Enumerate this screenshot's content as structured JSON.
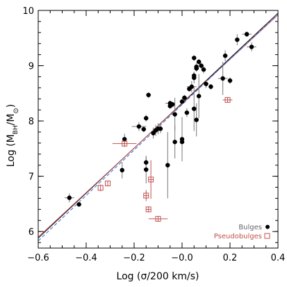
{
  "chart_data": {
    "type": "scatter",
    "xlabel": "Log (σ/200 km/s)",
    "ylabel_main": "Log (M",
    "ylabel_sub": "BH",
    "ylabel_mid": "/M",
    "ylabel_sun": "⊙",
    "ylabel_end": ")",
    "xlim": [
      -0.6,
      0.4
    ],
    "ylim": [
      5.7,
      10.0
    ],
    "x_ticks": [
      -0.6,
      -0.4,
      -0.2,
      0.0,
      0.2,
      0.4
    ],
    "x_tick_labels": [
      "−0.6",
      "−0.4",
      "−0.2",
      "−0.0",
      "0.2",
      "0.4"
    ],
    "y_ticks": [
      6,
      7,
      8,
      9,
      10
    ],
    "y_tick_labels": [
      "6",
      "7",
      "8",
      "9",
      "10"
    ],
    "legend_position": "bottom-right",
    "legend": [
      {
        "label": "Bulges",
        "marker": "filled-circle",
        "color": "#000000"
      },
      {
        "label": "Pseudobulges",
        "marker": "open-square",
        "color": "#c0504d"
      }
    ],
    "fit_lines": [
      {
        "name": "",
        "color": "#000000",
        "style": "solid",
        "x": [
          -0.6,
          0.4
        ],
        "y": [
          5.88,
          9.95
        ]
      },
      {
        "name": "",
        "color": "#c0504d",
        "style": "solid",
        "x": [
          -0.6,
          0.4
        ],
        "y": [
          5.9,
          9.92
        ]
      },
      {
        "name": "",
        "color": "#2e6fd8",
        "style": "dashed",
        "x": [
          -0.6,
          0.4
        ],
        "y": [
          5.83,
          9.94
        ]
      }
    ],
    "series": [
      {
        "name": "Bulges",
        "color": "#000000",
        "points": [
          {
            "x": -0.47,
            "y": 6.61,
            "xerr": 0.02,
            "yerr": 0.08
          },
          {
            "x": -0.43,
            "y": 6.49,
            "xerr": 0.01,
            "yerr": 0.03
          },
          {
            "x": -0.25,
            "y": 7.11,
            "xerr": 0.01,
            "yerr": 0.15
          },
          {
            "x": -0.24,
            "y": 7.67,
            "xerr": 0.0,
            "yerr": 0.1
          },
          {
            "x": -0.18,
            "y": 7.9,
            "xerr": 0.03,
            "yerr": 0.08
          },
          {
            "x": -0.16,
            "y": 7.85,
            "xerr": 0.01,
            "yerr": 0.05
          },
          {
            "x": -0.15,
            "y": 8.05,
            "xerr": 0.01,
            "yerr": 0.06
          },
          {
            "x": -0.14,
            "y": 8.47,
            "xerr": 0.01,
            "yerr": 0.05
          },
          {
            "x": -0.12,
            "y": 7.78,
            "xerr": 0.0,
            "yerr": 0.1
          },
          {
            "x": -0.11,
            "y": 7.83,
            "xerr": 0.0,
            "yerr": 0.1
          },
          {
            "x": -0.1,
            "y": 7.86,
            "xerr": 0.01,
            "yerr": 0.1
          },
          {
            "x": -0.09,
            "y": 7.86,
            "xerr": 0.01,
            "yerr": 0.08
          },
          {
            "x": -0.15,
            "y": 7.25,
            "xerr": 0.01,
            "yerr": 0.1
          },
          {
            "x": -0.15,
            "y": 7.12,
            "xerr": 0.01,
            "yerr": 0.25
          },
          {
            "x": -0.06,
            "y": 7.2,
            "xerr": 0.0,
            "yerr": 0.6
          },
          {
            "x": -0.05,
            "y": 8.32,
            "xerr": 0.02,
            "yerr": 0.05
          },
          {
            "x": -0.05,
            "y": 8.27,
            "xerr": 0.01,
            "yerr": 0.05
          },
          {
            "x": -0.04,
            "y": 8.3,
            "xerr": 0.01,
            "yerr": 0.05
          },
          {
            "x": -0.03,
            "y": 8.12,
            "xerr": 0.01,
            "yerr": 0.3
          },
          {
            "x": -0.03,
            "y": 7.62,
            "xerr": 0.0,
            "yerr": 0.3
          },
          {
            "x": 0.0,
            "y": 7.67,
            "xerr": 0.0,
            "yerr": 0.4
          },
          {
            "x": 0.0,
            "y": 7.62,
            "xerr": 0.01,
            "yerr": 0.3
          },
          {
            "x": 0.0,
            "y": 8.35,
            "xerr": 0.01,
            "yerr": 0.06
          },
          {
            "x": 0.01,
            "y": 8.42,
            "xerr": 0.01,
            "yerr": 0.05
          },
          {
            "x": 0.02,
            "y": 8.15,
            "xerr": 0.01,
            "yerr": 0.08
          },
          {
            "x": 0.03,
            "y": 8.58,
            "xerr": 0.01,
            "yerr": 0.05
          },
          {
            "x": 0.04,
            "y": 8.62,
            "xerr": 0.02,
            "yerr": 0.1
          },
          {
            "x": 0.05,
            "y": 8.78,
            "xerr": 0.01,
            "yerr": 0.1
          },
          {
            "x": 0.05,
            "y": 8.82,
            "xerr": 0.01,
            "yerr": 0.07
          },
          {
            "x": 0.05,
            "y": 9.14,
            "xerr": 0.01,
            "yerr": 0.05
          },
          {
            "x": 0.06,
            "y": 8.98,
            "xerr": 0.01,
            "yerr": 0.07
          },
          {
            "x": 0.06,
            "y": 8.95,
            "xerr": 0.01,
            "yerr": 0.06
          },
          {
            "x": 0.07,
            "y": 9.07,
            "xerr": 0.01,
            "yerr": 0.05
          },
          {
            "x": 0.08,
            "y": 9.0,
            "xerr": 0.0,
            "yerr": 0.05
          },
          {
            "x": 0.05,
            "y": 8.22,
            "xerr": 0.01,
            "yerr": 0.4
          },
          {
            "x": 0.06,
            "y": 8.02,
            "xerr": 0.01,
            "yerr": 0.3
          },
          {
            "x": 0.07,
            "y": 8.45,
            "xerr": 0.01,
            "yerr": 0.4
          },
          {
            "x": 0.09,
            "y": 8.93,
            "xerr": 0.01,
            "yerr": 0.07
          },
          {
            "x": 0.1,
            "y": 8.67,
            "xerr": 0.01,
            "yerr": 0.07
          },
          {
            "x": 0.12,
            "y": 8.62,
            "xerr": 0.01,
            "yerr": 0.05
          },
          {
            "x": 0.17,
            "y": 8.77,
            "xerr": 0.02,
            "yerr": 0.3
          },
          {
            "x": 0.18,
            "y": 9.18,
            "xerr": 0.01,
            "yerr": 0.1
          },
          {
            "x": 0.2,
            "y": 8.73,
            "xerr": 0.01,
            "yerr": 0.06
          },
          {
            "x": 0.23,
            "y": 9.47,
            "xerr": 0.01,
            "yerr": 0.1
          },
          {
            "x": 0.27,
            "y": 9.57,
            "xerr": 0.02,
            "yerr": 0.05
          },
          {
            "x": 0.29,
            "y": 9.34,
            "xerr": 0.02,
            "yerr": 0.08
          }
        ]
      },
      {
        "name": "Pseudobulges",
        "color": "#c0504d",
        "points": [
          {
            "x": -0.34,
            "y": 6.79,
            "xerr": 0.0,
            "yerr": 0.06
          },
          {
            "x": -0.31,
            "y": 6.87,
            "xerr": 0.0,
            "yerr": 0.05
          },
          {
            "x": -0.24,
            "y": 7.59,
            "xerr": 0.05,
            "yerr": 0.06
          },
          {
            "x": -0.15,
            "y": 6.65,
            "xerr": 0.01,
            "yerr": 0.1
          },
          {
            "x": -0.14,
            "y": 6.4,
            "xerr": 0.01,
            "yerr": 0.05
          },
          {
            "x": -0.13,
            "y": 6.94,
            "xerr": 0.01,
            "yerr": 0.35
          },
          {
            "x": -0.1,
            "y": 6.23,
            "xerr": 0.04,
            "yerr": 0.05
          },
          {
            "x": 0.19,
            "y": 8.38,
            "xerr": 0.02,
            "yerr": 0.05
          }
        ]
      }
    ]
  }
}
